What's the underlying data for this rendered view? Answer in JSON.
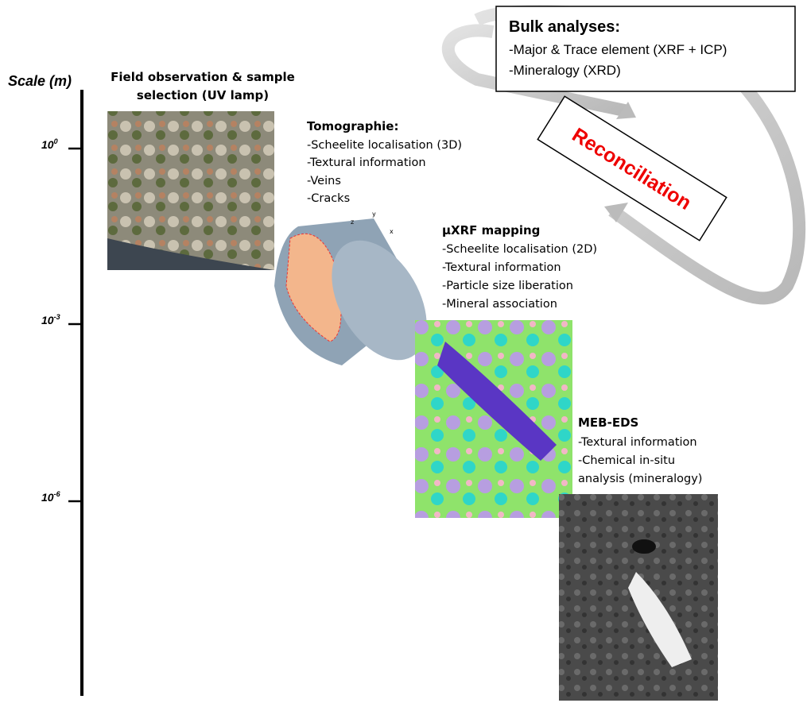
{
  "scale": {
    "title": "Scale (m)",
    "ticks": [
      {
        "base": "10",
        "exponent": "0"
      },
      {
        "base": "10",
        "exponent": "-3"
      },
      {
        "base": "10",
        "exponent": "-6"
      }
    ]
  },
  "field": {
    "title_lines": [
      "Field observation & sample",
      "selection (UV lamp)"
    ]
  },
  "tomography": {
    "title": "Tomographie:",
    "items": [
      "-Scheelite localisation (3D)",
      "-Textural information",
      "-Veins",
      "-Cracks"
    ],
    "axis_labels": [
      "z",
      "y",
      "x"
    ]
  },
  "uxrf": {
    "title": "µXRF mapping",
    "items": [
      "-Scheelite localisation (2D)",
      "-Textural information",
      "-Particle size liberation",
      "-Mineral association"
    ]
  },
  "meb": {
    "title": "MEB-EDS",
    "items": [
      "-Textural information",
      "-Chemical in-situ",
      "analysis (mineralogy)"
    ]
  },
  "bulk": {
    "title": "Bulk analyses:",
    "items": [
      "-Major & Trace element (XRF + ICP)",
      "-Mineralogy (XRD)"
    ]
  },
  "reconciliation": "Reconciliation"
}
